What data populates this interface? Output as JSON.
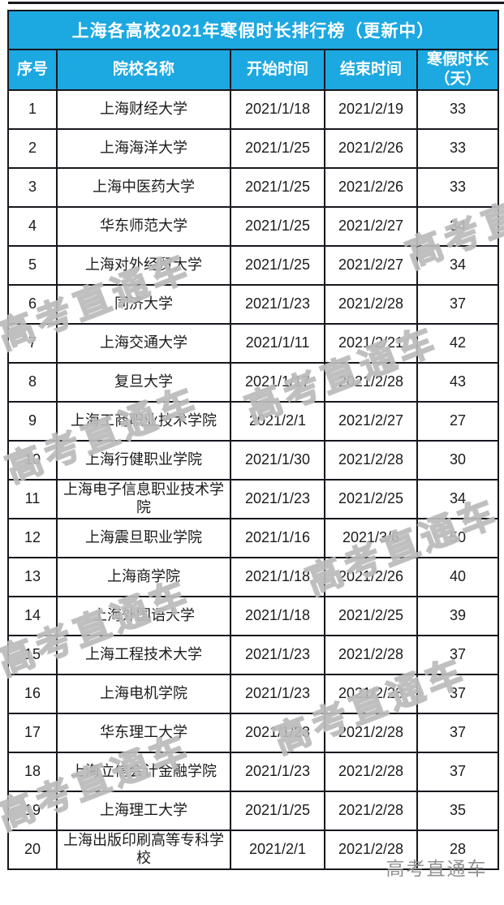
{
  "theme": {
    "header_bg": "#1ca8e1",
    "header_text": "#ffffff",
    "border": "#17171e",
    "body_text": "#1b1b1b",
    "watermark_outline": "#bababa",
    "watermark_solid": "#8f8f8f"
  },
  "watermark": {
    "text": "高考直通车"
  },
  "chart_data": {
    "type": "table",
    "title": "上海各高校2021年寒假时长排行榜（更新中）",
    "columns": [
      "序号",
      "院校名称",
      "开始时间",
      "结束时间",
      "寒假时长（天）"
    ],
    "rows": [
      {
        "no": "1",
        "name": "上海财经大学",
        "start": "2021/1/18",
        "end": "2021/2/19",
        "days": 33
      },
      {
        "no": "2",
        "name": "上海海洋大学",
        "start": "2021/1/25",
        "end": "2021/2/26",
        "days": 33
      },
      {
        "no": "3",
        "name": "上海中医药大学",
        "start": "2021/1/25",
        "end": "2021/2/26",
        "days": 33
      },
      {
        "no": "4",
        "name": "华东师范大学",
        "start": "2021/1/25",
        "end": "2021/2/27",
        "days": 34
      },
      {
        "no": "5",
        "name": "上海对外经贸大学",
        "start": "2021/1/25",
        "end": "2021/2/27",
        "days": 34
      },
      {
        "no": "6",
        "name": "同济大学",
        "start": "2021/1/23",
        "end": "2021/2/28",
        "days": 37
      },
      {
        "no": "7",
        "name": "上海交通大学",
        "start": "2021/1/11",
        "end": "2021/2/21",
        "days": 42
      },
      {
        "no": "8",
        "name": "复旦大学",
        "start": "2021/1/17",
        "end": "2021/2/28",
        "days": 43
      },
      {
        "no": "9",
        "name": "上海工商职业技术学院",
        "start": "2021/2/1",
        "end": "2021/2/27",
        "days": 27
      },
      {
        "no": "10",
        "name": "上海行健职业学院",
        "start": "2021/1/30",
        "end": "2021/2/28",
        "days": 30
      },
      {
        "no": "11",
        "name": "上海电子信息职业技术学院",
        "start": "2021/1/23",
        "end": "2021/2/25",
        "days": 34
      },
      {
        "no": "12",
        "name": "上海震旦职业学院",
        "start": "2021/1/16",
        "end": "2021/3/6",
        "days": 50
      },
      {
        "no": "13",
        "name": "上海商学院",
        "start": "2021/1/18",
        "end": "2021/2/26",
        "days": 40
      },
      {
        "no": "14",
        "name": "上海外国语大学",
        "start": "2021/1/18",
        "end": "2021/2/25",
        "days": 39
      },
      {
        "no": "15",
        "name": "上海工程技术大学",
        "start": "2021/1/23",
        "end": "2021/2/28",
        "days": 37
      },
      {
        "no": "16",
        "name": "上海电机学院",
        "start": "2021/1/23",
        "end": "2021/2/28",
        "days": 37
      },
      {
        "no": "17",
        "name": "华东理工大学",
        "start": "2021/1/23",
        "end": "2021/2/28",
        "days": 37
      },
      {
        "no": "18",
        "name": "上海立信会计金融学院",
        "start": "2021/1/23",
        "end": "2021/2/28",
        "days": 37
      },
      {
        "no": "19",
        "name": "上海理工大学",
        "start": "2021/1/25",
        "end": "2021/2/28",
        "days": 35
      },
      {
        "no": "20",
        "name": "上海出版印刷高等专科学校",
        "start": "2021/2/1",
        "end": "2021/2/28",
        "days": 28
      }
    ]
  }
}
